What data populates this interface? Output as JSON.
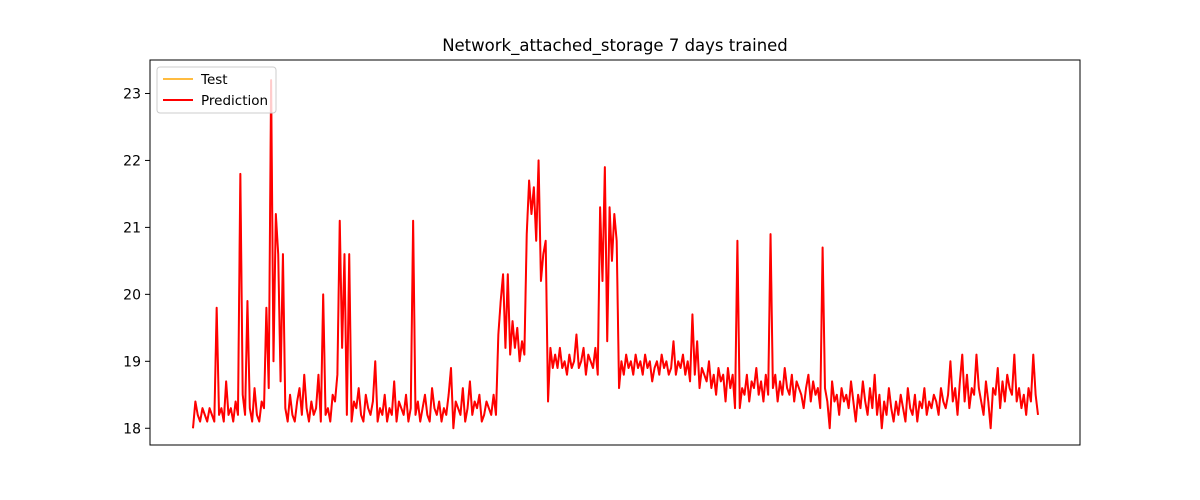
{
  "chart_data": {
    "type": "line",
    "title": "Network_attached_storage 7 days trained",
    "xlabel": "",
    "ylabel": "",
    "x_ticks_shown": false,
    "ylim": [
      17.75,
      23.5
    ],
    "y_ticks": [
      18,
      19,
      20,
      21,
      22,
      23
    ],
    "grid": false,
    "legend": "upper-left",
    "series": [
      {
        "name": "Test",
        "color": "#ffa500",
        "values": [
          18.0,
          18.4,
          18.2,
          18.1,
          18.3,
          18.2,
          18.1,
          18.3,
          18.2,
          18.1,
          19.8,
          18.2,
          18.3,
          18.1,
          18.7,
          18.2,
          18.3,
          18.1,
          18.4,
          18.2,
          21.8,
          18.5,
          18.2,
          19.9,
          18.3,
          18.1,
          18.6,
          18.2,
          18.1,
          18.4,
          18.3,
          19.8,
          18.6,
          23.2,
          19.0,
          21.2,
          20.6,
          18.7,
          20.6,
          18.3,
          18.1,
          18.5,
          18.2,
          18.1,
          18.4,
          18.6,
          18.2,
          18.8,
          18.3,
          18.1,
          18.4,
          18.2,
          18.3,
          18.8,
          18.1,
          20.0,
          18.2,
          18.3,
          18.1,
          18.5,
          18.4,
          18.8,
          21.1,
          19.2,
          20.6,
          18.2,
          20.6,
          18.1,
          18.4,
          18.3,
          18.6,
          18.2,
          18.1,
          18.5,
          18.3,
          18.2,
          18.4,
          19.0,
          18.1,
          18.3,
          18.2,
          18.5,
          18.1,
          18.3,
          18.2,
          18.7,
          18.1,
          18.4,
          18.3,
          18.2,
          18.5,
          18.1,
          18.3,
          21.1,
          18.2,
          18.4,
          18.1,
          18.3,
          18.5,
          18.2,
          18.1,
          18.6,
          18.3,
          18.2,
          18.4,
          18.1,
          18.3,
          18.2,
          18.5,
          18.9,
          18.0,
          18.4,
          18.3,
          18.2,
          18.6,
          18.1,
          18.3,
          18.7,
          18.2,
          18.4,
          18.3,
          18.5,
          18.1,
          18.2,
          18.4,
          18.3,
          18.2,
          18.5,
          18.2,
          19.4,
          19.9,
          20.3,
          19.2,
          20.3,
          19.1,
          19.6,
          19.2,
          19.5,
          19.0,
          19.3,
          19.1,
          20.9,
          21.7,
          21.2,
          21.6,
          20.8,
          22.0,
          20.2,
          20.6,
          20.8,
          18.4,
          19.2,
          18.9,
          19.1,
          18.9,
          19.2,
          18.9,
          19.0,
          18.8,
          19.1,
          18.9,
          19.0,
          19.4,
          18.9,
          19.0,
          19.2,
          18.8,
          19.1,
          19.0,
          18.9,
          19.2,
          18.8,
          21.3,
          20.2,
          21.9,
          19.3,
          21.3,
          20.5,
          21.2,
          20.8,
          18.6,
          19.0,
          18.8,
          19.1,
          18.9,
          19.0,
          18.8,
          19.1,
          18.9,
          19.0,
          18.8,
          19.1,
          18.9,
          19.0,
          18.7,
          18.9,
          19.0,
          18.8,
          19.1,
          18.9,
          19.0,
          18.8,
          18.9,
          19.3,
          18.8,
          19.0,
          18.9,
          19.1,
          18.8,
          19.0,
          18.7,
          19.7,
          18.8,
          19.3,
          18.6,
          18.9,
          18.8,
          18.7,
          19.0,
          18.6,
          18.8,
          18.5,
          18.9,
          18.7,
          18.8,
          18.4,
          18.9,
          18.6,
          18.8,
          18.3,
          20.8,
          18.3,
          18.6,
          18.5,
          18.8,
          18.4,
          18.7,
          18.6,
          18.9,
          18.5,
          18.7,
          18.4,
          18.8,
          18.5,
          20.9,
          18.6,
          18.8,
          18.4,
          18.7,
          18.5,
          18.9,
          18.6,
          18.5,
          18.8,
          18.4,
          18.7,
          18.6,
          18.5,
          18.3,
          18.6,
          18.8,
          18.4,
          18.7,
          18.5,
          18.6,
          18.3,
          20.7,
          18.6,
          18.4,
          18.0,
          18.7,
          18.4,
          18.5,
          18.2,
          18.6,
          18.4,
          18.5,
          18.3,
          18.7,
          18.4,
          18.1,
          18.5,
          18.3,
          18.7,
          18.4,
          18.2,
          18.6,
          18.3,
          18.8,
          18.2,
          18.5,
          18.0,
          18.4,
          18.2,
          18.6,
          18.3,
          18.1,
          18.4,
          18.2,
          18.5,
          18.3,
          18.1,
          18.6,
          18.3,
          18.2,
          18.5,
          18.1,
          18.4,
          18.3,
          18.6,
          18.2,
          18.4,
          18.3,
          18.5,
          18.4,
          18.2,
          18.6,
          18.4,
          18.3,
          18.5,
          19.0,
          18.4,
          18.6,
          18.2,
          18.7,
          19.1,
          18.4,
          18.8,
          18.3,
          18.6,
          18.5,
          19.1,
          18.6,
          18.4,
          18.2,
          18.7,
          18.4,
          18.0,
          18.6,
          18.5,
          18.9,
          18.3,
          18.7,
          18.4,
          18.8,
          18.6,
          18.5,
          19.1,
          18.4,
          18.6,
          18.3,
          18.5,
          18.2,
          18.6,
          18.4,
          19.1,
          18.5,
          18.2
        ]
      },
      {
        "name": "Prediction",
        "color": "#ff0000",
        "values": [
          18.0,
          18.4,
          18.2,
          18.1,
          18.3,
          18.2,
          18.1,
          18.3,
          18.2,
          18.1,
          19.8,
          18.2,
          18.3,
          18.1,
          18.7,
          18.2,
          18.3,
          18.1,
          18.4,
          18.2,
          21.8,
          18.5,
          18.2,
          19.9,
          18.3,
          18.1,
          18.6,
          18.2,
          18.1,
          18.4,
          18.3,
          19.8,
          18.6,
          23.2,
          19.0,
          21.2,
          20.6,
          18.7,
          20.6,
          18.3,
          18.1,
          18.5,
          18.2,
          18.1,
          18.4,
          18.6,
          18.2,
          18.8,
          18.3,
          18.1,
          18.4,
          18.2,
          18.3,
          18.8,
          18.1,
          20.0,
          18.2,
          18.3,
          18.1,
          18.5,
          18.4,
          18.8,
          21.1,
          19.2,
          20.6,
          18.2,
          20.6,
          18.1,
          18.4,
          18.3,
          18.6,
          18.2,
          18.1,
          18.5,
          18.3,
          18.2,
          18.4,
          19.0,
          18.1,
          18.3,
          18.2,
          18.5,
          18.1,
          18.3,
          18.2,
          18.7,
          18.1,
          18.4,
          18.3,
          18.2,
          18.5,
          18.1,
          18.3,
          21.1,
          18.2,
          18.4,
          18.1,
          18.3,
          18.5,
          18.2,
          18.1,
          18.6,
          18.3,
          18.2,
          18.4,
          18.1,
          18.3,
          18.2,
          18.5,
          18.9,
          18.0,
          18.4,
          18.3,
          18.2,
          18.6,
          18.1,
          18.3,
          18.7,
          18.2,
          18.4,
          18.3,
          18.5,
          18.1,
          18.2,
          18.4,
          18.3,
          18.2,
          18.5,
          18.2,
          19.4,
          19.9,
          20.3,
          19.2,
          20.3,
          19.1,
          19.6,
          19.2,
          19.5,
          19.0,
          19.3,
          19.1,
          20.9,
          21.7,
          21.2,
          21.6,
          20.8,
          22.0,
          20.2,
          20.6,
          20.8,
          18.4,
          19.2,
          18.9,
          19.1,
          18.9,
          19.2,
          18.9,
          19.0,
          18.8,
          19.1,
          18.9,
          19.0,
          19.4,
          18.9,
          19.0,
          19.2,
          18.8,
          19.1,
          19.0,
          18.9,
          19.2,
          18.8,
          21.3,
          20.2,
          21.9,
          19.3,
          21.3,
          20.5,
          21.2,
          20.8,
          18.6,
          19.0,
          18.8,
          19.1,
          18.9,
          19.0,
          18.8,
          19.1,
          18.9,
          19.0,
          18.8,
          19.1,
          18.9,
          19.0,
          18.7,
          18.9,
          19.0,
          18.8,
          19.1,
          18.9,
          19.0,
          18.8,
          18.9,
          19.3,
          18.8,
          19.0,
          18.9,
          19.1,
          18.8,
          19.0,
          18.7,
          19.7,
          18.8,
          19.3,
          18.6,
          18.9,
          18.8,
          18.7,
          19.0,
          18.6,
          18.8,
          18.5,
          18.9,
          18.7,
          18.8,
          18.4,
          18.9,
          18.6,
          18.8,
          18.3,
          20.8,
          18.3,
          18.6,
          18.5,
          18.8,
          18.4,
          18.7,
          18.6,
          18.9,
          18.5,
          18.7,
          18.4,
          18.8,
          18.5,
          20.9,
          18.6,
          18.8,
          18.4,
          18.7,
          18.5,
          18.9,
          18.6,
          18.5,
          18.8,
          18.4,
          18.7,
          18.6,
          18.5,
          18.3,
          18.6,
          18.8,
          18.4,
          18.7,
          18.5,
          18.6,
          18.3,
          20.7,
          18.6,
          18.4,
          18.0,
          18.7,
          18.4,
          18.5,
          18.2,
          18.6,
          18.4,
          18.5,
          18.3,
          18.7,
          18.4,
          18.1,
          18.5,
          18.3,
          18.7,
          18.4,
          18.2,
          18.6,
          18.3,
          18.8,
          18.2,
          18.5,
          18.0,
          18.4,
          18.2,
          18.6,
          18.3,
          18.1,
          18.4,
          18.2,
          18.5,
          18.3,
          18.1,
          18.6,
          18.3,
          18.2,
          18.5,
          18.1,
          18.4,
          18.3,
          18.6,
          18.2,
          18.4,
          18.3,
          18.5,
          18.4,
          18.2,
          18.6,
          18.4,
          18.3,
          18.5,
          19.0,
          18.4,
          18.6,
          18.2,
          18.7,
          19.1,
          18.4,
          18.8,
          18.3,
          18.6,
          18.5,
          19.1,
          18.6,
          18.4,
          18.2,
          18.7,
          18.4,
          18.0,
          18.6,
          18.5,
          18.9,
          18.3,
          18.7,
          18.4,
          18.8,
          18.6,
          18.5,
          19.1,
          18.4,
          18.6,
          18.3,
          18.5,
          18.2,
          18.6,
          18.4,
          19.1,
          18.5,
          18.2
        ]
      }
    ]
  }
}
